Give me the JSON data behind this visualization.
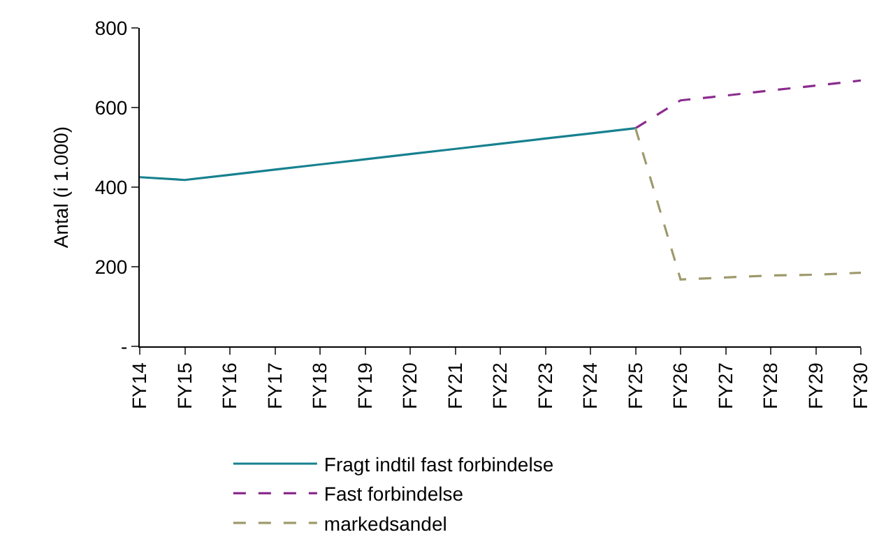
{
  "chart_data": {
    "type": "line",
    "ylabel": "Antal (i 1.000)",
    "categories": [
      "FY14",
      "FY15",
      "FY16",
      "FY17",
      "FY18",
      "FY19",
      "FY20",
      "FY21",
      "FY22",
      "FY23",
      "FY24",
      "FY25",
      "FY26",
      "FY27",
      "FY28",
      "FY29",
      "FY30"
    ],
    "series": [
      {
        "name": "Fragt indtil fast forbindelse",
        "color": "#17818f",
        "line_style": "solid",
        "values": [
          425,
          418,
          431,
          444,
          457,
          470,
          483,
          496,
          509,
          522,
          535,
          548,
          null,
          null,
          null,
          null,
          null
        ]
      },
      {
        "name": "Fast forbindelse",
        "color": "#8b2c8f",
        "line_style": "dashed",
        "values": [
          null,
          null,
          null,
          null,
          null,
          null,
          null,
          null,
          null,
          null,
          null,
          548,
          618,
          630,
          643,
          655,
          668
        ]
      },
      {
        "name": "markedsandel",
        "color": "#9e9a6c",
        "line_style": "dashed",
        "values": [
          null,
          null,
          null,
          null,
          null,
          null,
          null,
          null,
          null,
          null,
          null,
          548,
          168,
          173,
          178,
          180,
          185
        ]
      }
    ],
    "ylim": [
      0,
      800
    ],
    "yticks": [
      {
        "value": 0,
        "label": "-"
      },
      200,
      400,
      600,
      800
    ],
    "legend": "bottom",
    "marker": "none"
  }
}
